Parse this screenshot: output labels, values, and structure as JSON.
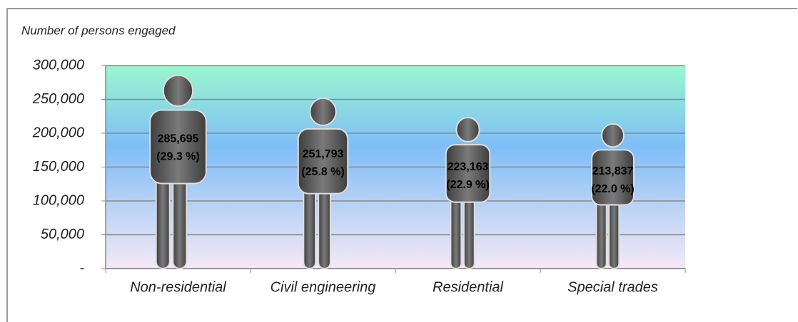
{
  "chart_data": {
    "type": "pictograph",
    "y_label": "Number of persons engaged",
    "categories": [
      "Non-residential",
      "Civil engineering",
      "Residential",
      "Special trades"
    ],
    "values": [
      285695,
      251793,
      223163,
      213837
    ],
    "value_labels": [
      "285,695",
      "251,793",
      "223,163",
      "213,837"
    ],
    "share_labels": [
      "(29.3 %)",
      "(25.8 %)",
      "(22.9 %)",
      "(22.0 %)"
    ],
    "color": "#5e5e5e",
    "ylim": [
      0,
      300000
    ],
    "yticks": [
      {
        "value": 0,
        "label": "-"
      },
      {
        "value": 50000,
        "label": "50,000"
      },
      {
        "value": 100000,
        "label": "100,000"
      },
      {
        "value": 150000,
        "label": "150,000"
      },
      {
        "value": 200000,
        "label": "200,000"
      },
      {
        "value": 250000,
        "label": "250,000"
      },
      {
        "value": 300000,
        "label": "300,000"
      }
    ],
    "grid": true
  }
}
